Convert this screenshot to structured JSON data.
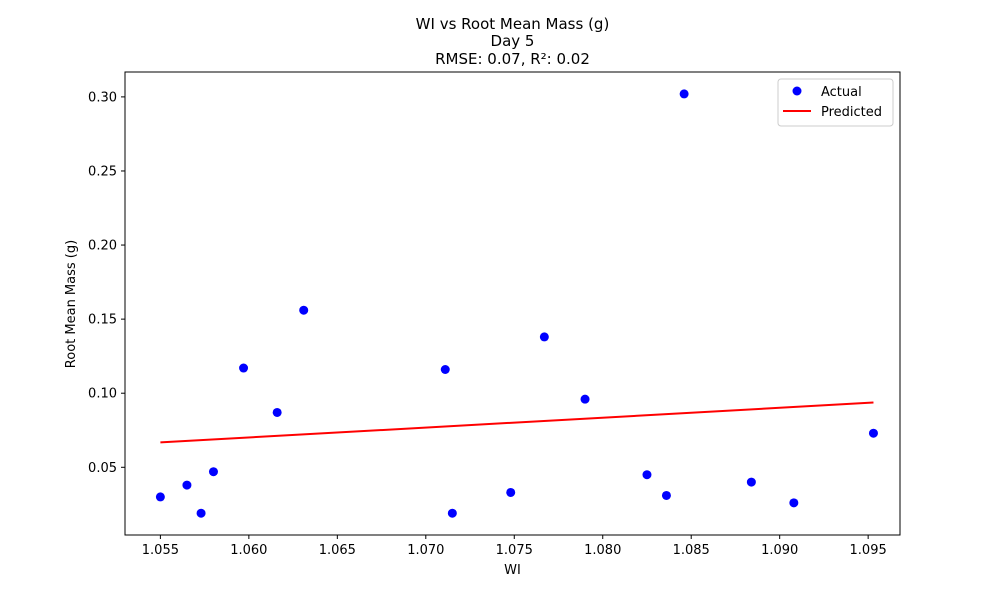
{
  "chart_data": {
    "type": "scatter",
    "title": "WI vs Root Mean Mass (g)",
    "subtitle": "Day 5",
    "metrics": "RMSE: 0.07, R²: 0.02",
    "xlabel": "WI",
    "ylabel": "Root Mean Mass (g)",
    "xlim": [
      1.053,
      1.0968
    ],
    "ylim": [
      0.0043,
      0.3168
    ],
    "xticks": [
      "1.055",
      "1.060",
      "1.065",
      "1.070",
      "1.075",
      "1.080",
      "1.085",
      "1.090",
      "1.095"
    ],
    "yticks": [
      "0.05",
      "0.10",
      "0.15",
      "0.20",
      "0.25",
      "0.30"
    ],
    "grid": false,
    "legend_position": "top-right",
    "series": [
      {
        "name": "Actual",
        "kind": "scatter",
        "color": "#0000ff",
        "points": [
          {
            "x": 1.055,
            "y": 0.03
          },
          {
            "x": 1.0565,
            "y": 0.038
          },
          {
            "x": 1.0573,
            "y": 0.019
          },
          {
            "x": 1.058,
            "y": 0.047
          },
          {
            "x": 1.0597,
            "y": 0.117
          },
          {
            "x": 1.0616,
            "y": 0.087
          },
          {
            "x": 1.0631,
            "y": 0.156
          },
          {
            "x": 1.0711,
            "y": 0.116
          },
          {
            "x": 1.0715,
            "y": 0.019
          },
          {
            "x": 1.0748,
            "y": 0.033
          },
          {
            "x": 1.0767,
            "y": 0.138
          },
          {
            "x": 1.079,
            "y": 0.096
          },
          {
            "x": 1.0825,
            "y": 0.045
          },
          {
            "x": 1.0836,
            "y": 0.031
          },
          {
            "x": 1.0846,
            "y": 0.302
          },
          {
            "x": 1.0884,
            "y": 0.04
          },
          {
            "x": 1.0908,
            "y": 0.026
          },
          {
            "x": 1.0953,
            "y": 0.073
          }
        ]
      },
      {
        "name": "Predicted",
        "kind": "line",
        "color": "#ff0000",
        "points": [
          {
            "x": 1.055,
            "y": 0.0668
          },
          {
            "x": 1.0953,
            "y": 0.0937
          }
        ]
      }
    ]
  }
}
